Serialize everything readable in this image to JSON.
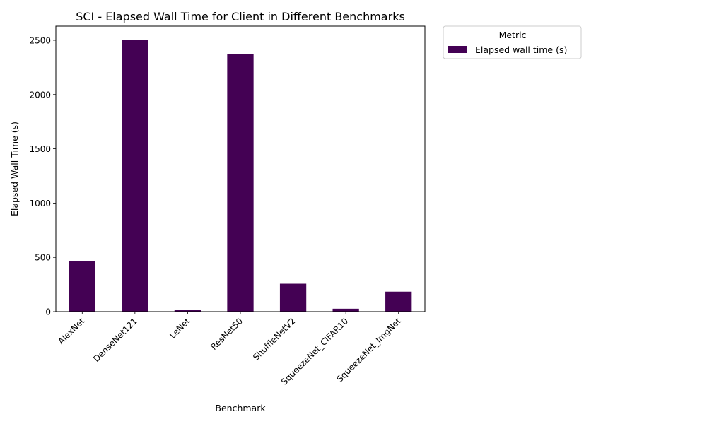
{
  "colors": {
    "bar": "#440154",
    "axis": "#000000",
    "legend_border": "#cccccc"
  },
  "chart_data": {
    "type": "bar",
    "title": "SCI - Elapsed Wall Time for Client in Different Benchmarks",
    "xlabel": "Benchmark",
    "ylabel": "Elapsed Wall Time (s)",
    "categories": [
      "AlexNet",
      "DenseNet121",
      "LeNet",
      "ResNet50",
      "ShuffleNetV2",
      "SqueezeNet_CIFAR10",
      "SqueezeNet_ImgNet"
    ],
    "series": [
      {
        "name": "Elapsed wall time (s)",
        "values": [
          463,
          2505,
          14,
          2375,
          257,
          27,
          184
        ]
      }
    ],
    "ylim": [
      0,
      2630
    ],
    "yticks": [
      0,
      500,
      1000,
      1500,
      2000,
      2500
    ],
    "grid": false,
    "legend": {
      "title": "Metric",
      "placement": "outside-top-right"
    }
  }
}
